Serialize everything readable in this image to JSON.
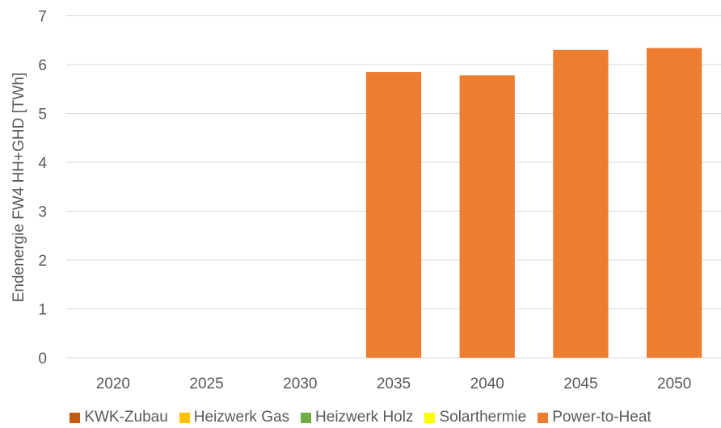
{
  "chart_data": {
    "type": "bar",
    "stacked": true,
    "categories": [
      "2020",
      "2025",
      "2030",
      "2035",
      "2040",
      "2045",
      "2050"
    ],
    "series": [
      {
        "name": "KWK-Zubau",
        "color": "#C55A11",
        "values": [
          0,
          0,
          0,
          0,
          0,
          0,
          0
        ]
      },
      {
        "name": "Heizwerk Gas",
        "color": "#FFC000",
        "values": [
          0,
          0,
          0,
          0,
          0,
          0,
          0
        ]
      },
      {
        "name": "Heizwerk Holz",
        "color": "#70AD47",
        "values": [
          0,
          0,
          0,
          0,
          0,
          0,
          0
        ]
      },
      {
        "name": "Solarthermie",
        "color": "#FFFF00",
        "values": [
          0,
          0,
          0,
          0,
          0,
          0,
          0
        ]
      },
      {
        "name": "Power-to-Heat",
        "color": "#ED7D31",
        "values": [
          0,
          0,
          0,
          5.85,
          5.78,
          6.3,
          6.34
        ]
      }
    ],
    "ylabel": "Endenergie FW4 HH+GHD  [TWh]",
    "ylim": [
      0,
      7
    ],
    "yticks": [
      "0",
      "1",
      "2",
      "3",
      "4",
      "5",
      "6",
      "7"
    ],
    "grid": true,
    "legend_position": "bottom"
  }
}
